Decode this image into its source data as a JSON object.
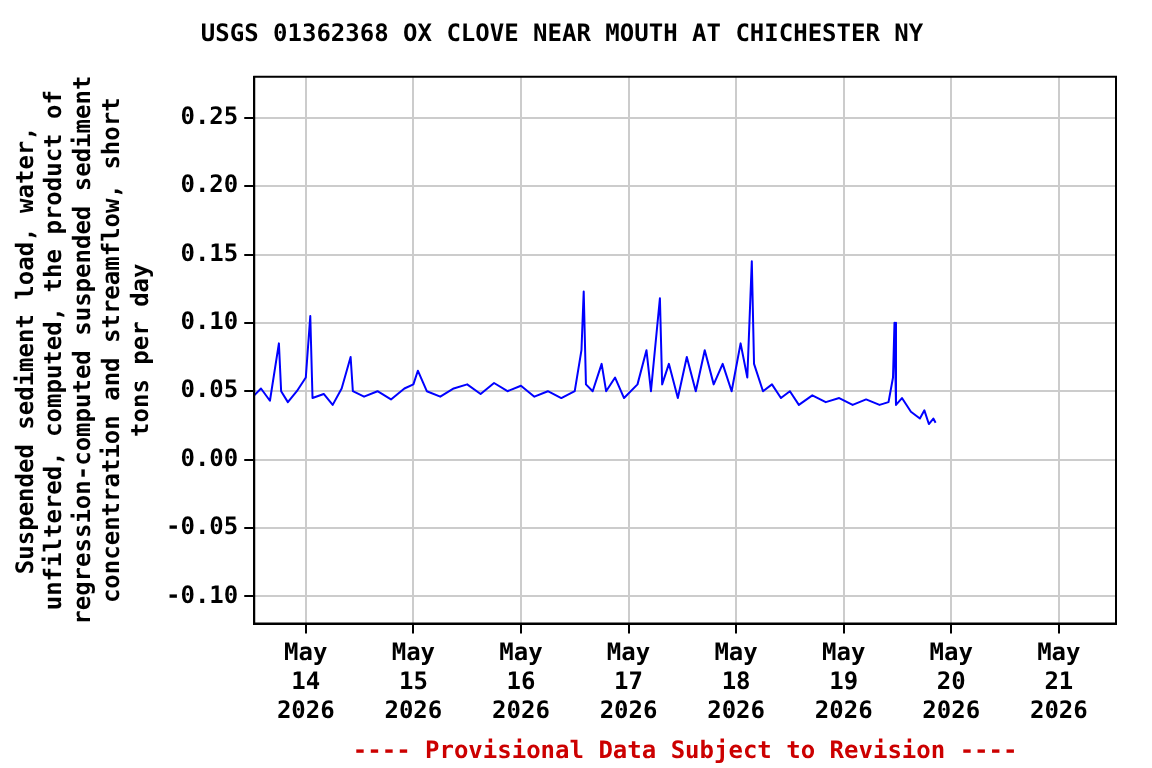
{
  "chart_data": {
    "type": "line",
    "title": "USGS 01362368 OX CLOVE NEAR MOUTH AT CHICHESTER NY",
    "ylabel": "Suspended sediment load, water,\nunfiltered, computed, the product of\nregression-computed suspended sediment\nconcentration and streamflow, short\ntons per day",
    "annotations": [
      "---- Provisional Data Subject to Revision ----"
    ],
    "x": [
      "2026-05-13T12:30",
      "2026-05-13T14:00",
      "2026-05-13T16:00",
      "2026-05-13T18:00",
      "2026-05-13T18:30",
      "2026-05-13T20:00",
      "2026-05-13T22:00",
      "2026-05-14T00:00",
      "2026-05-14T01:00",
      "2026-05-14T01:30",
      "2026-05-14T04:00",
      "2026-05-14T06:00",
      "2026-05-14T08:00",
      "2026-05-14T10:00",
      "2026-05-14T10:30",
      "2026-05-14T13:00",
      "2026-05-14T16:00",
      "2026-05-14T19:00",
      "2026-05-14T22:00",
      "2026-05-15T00:00",
      "2026-05-15T01:00",
      "2026-05-15T03:00",
      "2026-05-15T06:00",
      "2026-05-15T09:00",
      "2026-05-15T12:00",
      "2026-05-15T15:00",
      "2026-05-15T18:00",
      "2026-05-15T21:00",
      "2026-05-16T00:00",
      "2026-05-16T03:00",
      "2026-05-16T06:00",
      "2026-05-16T09:00",
      "2026-05-16T12:00",
      "2026-05-16T13:30",
      "2026-05-16T14:00",
      "2026-05-16T14:30",
      "2026-05-16T16:00",
      "2026-05-16T18:00",
      "2026-05-16T19:00",
      "2026-05-16T21:00",
      "2026-05-16T23:00",
      "2026-05-17T02:00",
      "2026-05-17T04:00",
      "2026-05-17T05:00",
      "2026-05-17T07:00",
      "2026-05-17T07:30",
      "2026-05-17T09:00",
      "2026-05-17T11:00",
      "2026-05-17T13:00",
      "2026-05-17T15:00",
      "2026-05-17T17:00",
      "2026-05-17T19:00",
      "2026-05-17T21:00",
      "2026-05-17T23:00",
      "2026-05-18T01:00",
      "2026-05-18T02:30",
      "2026-05-18T03:30",
      "2026-05-18T04:00",
      "2026-05-18T06:00",
      "2026-05-18T08:00",
      "2026-05-18T10:00",
      "2026-05-18T12:00",
      "2026-05-18T14:00",
      "2026-05-18T17:00",
      "2026-05-18T20:00",
      "2026-05-18T23:00",
      "2026-05-19T02:00",
      "2026-05-19T05:00",
      "2026-05-19T08:00",
      "2026-05-19T10:00",
      "2026-05-19T11:00",
      "2026-05-19T11:20",
      "2026-05-19T11:40",
      "2026-05-19T13:00",
      "2026-05-19T15:00",
      "2026-05-19T17:00",
      "2026-05-19T18:00",
      "2026-05-19T19:00",
      "2026-05-19T20:00",
      "2026-05-19T20:30"
    ],
    "series": [
      {
        "color": "#0000ff",
        "values": [
          0.047,
          0.052,
          0.043,
          0.085,
          0.05,
          0.042,
          0.05,
          0.06,
          0.105,
          0.045,
          0.048,
          0.04,
          0.052,
          0.075,
          0.05,
          0.046,
          0.05,
          0.044,
          0.052,
          0.055,
          0.065,
          0.05,
          0.046,
          0.052,
          0.055,
          0.048,
          0.056,
          0.05,
          0.054,
          0.046,
          0.05,
          0.045,
          0.05,
          0.08,
          0.123,
          0.055,
          0.05,
          0.07,
          0.05,
          0.06,
          0.045,
          0.055,
          0.08,
          0.05,
          0.118,
          0.055,
          0.07,
          0.045,
          0.075,
          0.05,
          0.08,
          0.055,
          0.07,
          0.05,
          0.085,
          0.06,
          0.145,
          0.07,
          0.05,
          0.055,
          0.045,
          0.05,
          0.04,
          0.047,
          0.042,
          0.045,
          0.04,
          0.044,
          0.04,
          0.042,
          0.06,
          0.1,
          0.04,
          0.045,
          0.035,
          0.03,
          0.036,
          0.026,
          0.03,
          0.027
        ]
      }
    ],
    "xlim": [
      "2026-05-13T12:30",
      "2026-05-21T12:45"
    ],
    "xticks": [
      {
        "value": "2026-05-14",
        "label": "May\n14\n2026"
      },
      {
        "value": "2026-05-15",
        "label": "May\n15\n2026"
      },
      {
        "value": "2026-05-16",
        "label": "May\n16\n2026"
      },
      {
        "value": "2026-05-17",
        "label": "May\n17\n2026"
      },
      {
        "value": "2026-05-18",
        "label": "May\n18\n2026"
      },
      {
        "value": "2026-05-19",
        "label": "May\n19\n2026"
      },
      {
        "value": "2026-05-20",
        "label": "May\n20\n2026"
      },
      {
        "value": "2026-05-21",
        "label": "May\n21\n2026"
      }
    ],
    "ylim": [
      -0.12,
      0.28
    ],
    "yticks": [
      {
        "value": -0.1,
        "label": "-0.10"
      },
      {
        "value": -0.05,
        "label": "-0.05"
      },
      {
        "value": 0,
        "label": "0.00"
      },
      {
        "value": 0.05,
        "label": "0.05"
      },
      {
        "value": 0.1,
        "label": "0.10"
      },
      {
        "value": 0.15,
        "label": "0.15"
      },
      {
        "value": 0.2,
        "label": "0.20"
      },
      {
        "value": 0.25,
        "label": "0.25"
      }
    ],
    "grid": true,
    "legend": false,
    "marker": "none",
    "line_style": "solid"
  }
}
